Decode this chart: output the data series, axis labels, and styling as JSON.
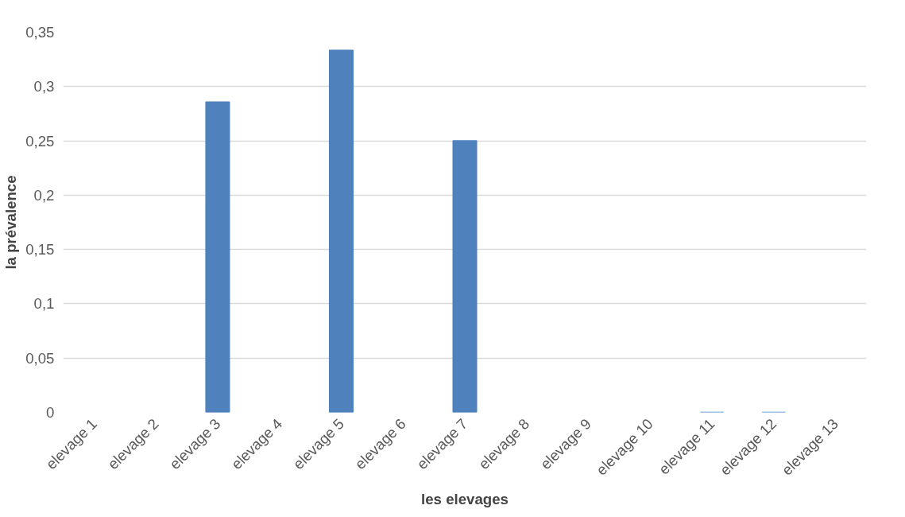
{
  "chart_data": {
    "type": "bar",
    "xlabel": "les elevages",
    "ylabel": "la prévalence",
    "categories": [
      "elevage 1",
      "elevage 2",
      "elevage 3",
      "elevage 4",
      "elevage 5",
      "elevage 6",
      "elevage 7",
      "elevage 8",
      "elevage 9",
      "elevage 10",
      "elevage 11",
      "elevage 12",
      "elevage 13"
    ],
    "values": [
      null,
      null,
      0.2857,
      null,
      0.3333,
      null,
      0.25,
      null,
      null,
      null,
      0,
      0,
      null
    ],
    "color": "#4f81bd",
    "ylim": [
      0,
      0.35
    ],
    "yticks": [
      {
        "value": 0,
        "label": "0"
      },
      {
        "value": 0.05,
        "label": "0,05"
      },
      {
        "value": 0.1,
        "label": "0,1"
      },
      {
        "value": 0.15,
        "label": "0,15"
      },
      {
        "value": 0.2,
        "label": "0,2"
      },
      {
        "value": 0.25,
        "label": "0,25"
      },
      {
        "value": 0.3,
        "label": "0,3"
      },
      {
        "value": 0.35,
        "label": "0,35"
      }
    ],
    "grid": "y"
  }
}
